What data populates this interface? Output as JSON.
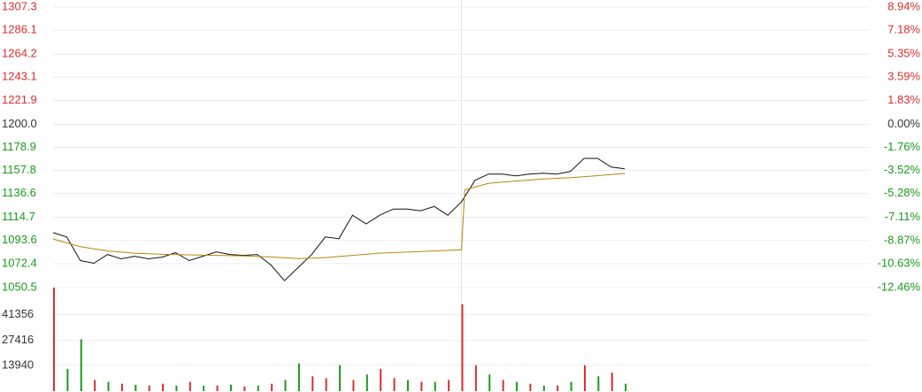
{
  "chart_data": [
    {
      "type": "line",
      "xlim": [
        0,
        240
      ],
      "ylim": [
        1050.5,
        1307.3
      ],
      "yticks": [
        1307.3,
        1286.1,
        1264.2,
        1243.1,
        1221.9,
        {
          "value": 1200,
          "label": "1200.0"
        },
        1178.9,
        1157.8,
        1136.6,
        1114.7,
        1093.6,
        1072.4,
        1050.5
      ],
      "y2lim": [
        -12.46,
        8.94
      ],
      "y2ticks": [
        {
          "value": 8.94,
          "label": "8.94%"
        },
        {
          "value": 7.18,
          "label": "7.18%"
        },
        {
          "value": 5.35,
          "label": "5.35%"
        },
        {
          "value": 3.59,
          "label": "3.59%"
        },
        {
          "value": 1.83,
          "label": "1.83%"
        },
        {
          "value": 0,
          "label": "0.00%"
        },
        {
          "value": -1.76,
          "label": "-1.76%"
        },
        {
          "value": -3.52,
          "label": "-3.52%"
        },
        {
          "value": -5.28,
          "label": "-5.28%"
        },
        {
          "value": -7.11,
          "label": "-7.11%"
        },
        {
          "value": -8.87,
          "label": "-8.87%"
        },
        {
          "value": -10.63,
          "label": "-10.63%"
        },
        {
          "value": -12.46,
          "label": "-12.46%"
        }
      ],
      "prev_close": 1200,
      "up_color": "#d9302c",
      "down_color": "#1a9a1a",
      "flat_color": "#333333",
      "grid": true,
      "series": [
        {
          "color": "#111111",
          "x": [
            0,
            4,
            8,
            12,
            16,
            20,
            24,
            28,
            32,
            36,
            40,
            44,
            48,
            52,
            56,
            60,
            64,
            68,
            72,
            76,
            80,
            84,
            88,
            92,
            96,
            100,
            104,
            108,
            112,
            116,
            120,
            124,
            128,
            132,
            136,
            140,
            144,
            148,
            152,
            156,
            160,
            164,
            168
          ],
          "values": [
            1100.8,
            1096.8,
            1075.2,
            1072.8,
            1080.8,
            1076.8,
            1079.2,
            1076.8,
            1078.4,
            1082.4,
            1075.2,
            1079.2,
            1083.2,
            1080.8,
            1080,
            1080.8,
            1071.2,
            1056.8,
            1068.8,
            1080.8,
            1096.8,
            1095.2,
            1116.8,
            1108.8,
            1116.8,
            1122.4,
            1122.4,
            1120.8,
            1124.8,
            1116.8,
            1128.8,
            1148.8,
            1154.4,
            1154.4,
            1152.8,
            1154.4,
            1155.2,
            1154.4,
            1156.8,
            1168.8,
            1168.8,
            1160.8,
            1159.2
          ]
        },
        {
          "color": "#b8860b",
          "x": [
            0,
            8,
            16,
            24,
            32,
            40,
            48,
            56,
            64,
            72,
            80,
            88,
            96,
            104,
            112,
            120,
            121,
            128,
            136,
            144,
            152,
            160,
            168
          ],
          "values": [
            1095,
            1088,
            1084,
            1082,
            1081,
            1080.5,
            1080,
            1079.5,
            1078.5,
            1077,
            1078,
            1080,
            1082,
            1083,
            1084,
            1085,
            1140,
            1146,
            1148,
            1150,
            1151,
            1153,
            1155
          ]
        }
      ]
    },
    {
      "type": "bar",
      "xlim": [
        0,
        240
      ],
      "ylim": [
        0,
        56000
      ],
      "yticks": [
        41356,
        27416,
        13940
      ],
      "x": [
        0,
        4,
        8,
        12,
        16,
        20,
        24,
        28,
        32,
        36,
        40,
        44,
        48,
        52,
        56,
        60,
        64,
        68,
        72,
        76,
        80,
        84,
        88,
        92,
        96,
        100,
        104,
        108,
        112,
        116,
        120,
        124,
        128,
        132,
        136,
        140,
        144,
        148,
        152,
        156,
        160,
        164,
        168
      ],
      "values": [
        56000,
        12000,
        28000,
        6000,
        5000,
        4000,
        3500,
        3000,
        4000,
        3000,
        5000,
        3000,
        3000,
        3500,
        2500,
        3000,
        4000,
        6000,
        15000,
        8000,
        7000,
        14000,
        6000,
        9000,
        12000,
        7000,
        6000,
        5000,
        5000,
        6000,
        47000,
        14000,
        9000,
        6000,
        5000,
        4000,
        3000,
        3000,
        5000,
        14000,
        8000,
        10000,
        4000
      ],
      "colors": [
        "#d9302c",
        "#1a9a1a",
        "#1a9a1a",
        "#d9302c",
        "#1a9a1a",
        "#d9302c",
        "#1a9a1a",
        "#d9302c",
        "#d9302c",
        "#1a9a1a",
        "#d9302c",
        "#1a9a1a",
        "#d9302c",
        "#1a9a1a",
        "#d9302c",
        "#1a9a1a",
        "#d9302c",
        "#1a9a1a",
        "#1a9a1a",
        "#d9302c",
        "#d9302c",
        "#1a9a1a",
        "#d9302c",
        "#1a9a1a",
        "#d9302c",
        "#d9302c",
        "#1a9a1a",
        "#d9302c",
        "#1a9a1a",
        "#d9302c",
        "#d9302c",
        "#d9302c",
        "#1a9a1a",
        "#d9302c",
        "#1a9a1a",
        "#d9302c",
        "#1a9a1a",
        "#d9302c",
        "#1a9a1a",
        "#d9302c",
        "#1a9a1a",
        "#d9302c",
        "#1a9a1a"
      ],
      "label_color": "#333333",
      "grid": true
    }
  ]
}
